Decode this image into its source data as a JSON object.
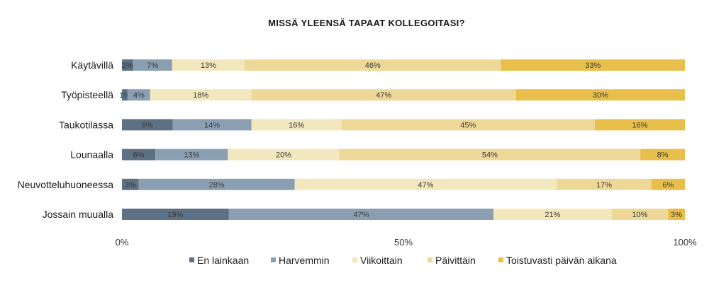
{
  "chart_data": {
    "type": "bar",
    "orientation": "horizontal",
    "stacked": true,
    "title": "MISSÄ YLEENSÄ TAPAAT KOLLEGOITASI?",
    "xlabel": "",
    "ylabel": "",
    "xlim": [
      0,
      100
    ],
    "x_ticks": [
      "0%",
      "50%",
      "100%"
    ],
    "categories": [
      "Käytävillä",
      "Työpisteellä",
      "Taukotilassa",
      "Lounaalla",
      "Neuvotteluhuoneessa",
      "Jossain muualla"
    ],
    "series": [
      {
        "name": "En lainkaan",
        "color": "#5d7184",
        "values": [
          2,
          1,
          9,
          6,
          3,
          19
        ]
      },
      {
        "name": "Harvemmin",
        "color": "#8b9fb3",
        "values": [
          7,
          4,
          14,
          13,
          28,
          47
        ]
      },
      {
        "name": "Viikoittain",
        "color": "#f3e7bd",
        "values": [
          13,
          18,
          16,
          20,
          47,
          21
        ]
      },
      {
        "name": "Päivittäin",
        "color": "#eed898",
        "values": [
          46,
          47,
          45,
          54,
          17,
          10
        ]
      },
      {
        "name": "Toistuvasti päivän aikana",
        "color": "#e9bf4b",
        "values": [
          33,
          30,
          16,
          8,
          6,
          3
        ]
      }
    ],
    "legend_position": "bottom",
    "grid": false
  }
}
